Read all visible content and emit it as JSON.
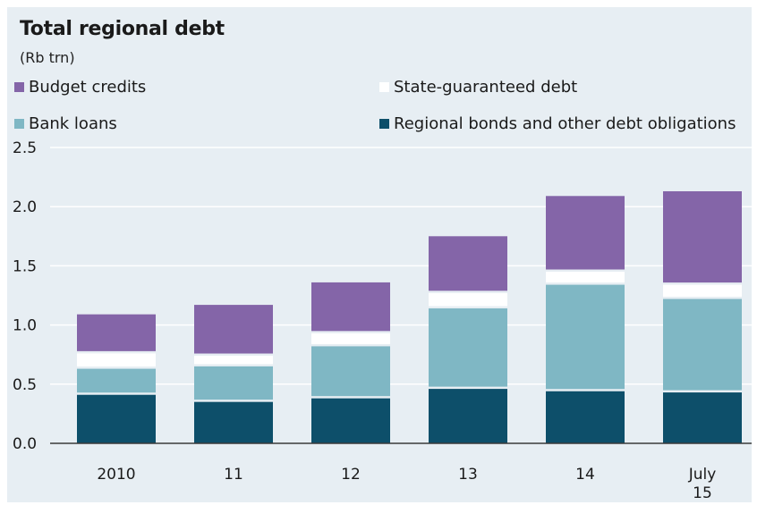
{
  "chart_data": {
    "type": "bar",
    "stacked": true,
    "title": "Total regional debt",
    "subtitle": "(Rb trn)",
    "categories": [
      "2010",
      "11",
      "12",
      "13",
      "14",
      "July\n15"
    ],
    "series": [
      {
        "name": "Regional bonds and other debt obligations",
        "color": "#0d4f6a",
        "values": [
          0.41,
          0.35,
          0.38,
          0.46,
          0.44,
          0.43
        ]
      },
      {
        "name": "Bank loans",
        "color": "#7fb7c4",
        "values": [
          0.22,
          0.3,
          0.44,
          0.68,
          0.9,
          0.79
        ]
      },
      {
        "name": "State-guaranteed debt",
        "color": "#ffffff",
        "values": [
          0.13,
          0.09,
          0.11,
          0.13,
          0.11,
          0.12
        ]
      },
      {
        "name": "Budget credits",
        "color": "#8465a8",
        "values": [
          0.33,
          0.43,
          0.43,
          0.48,
          0.64,
          0.79
        ]
      }
    ],
    "ylim": [
      0,
      2.5
    ],
    "yticks": [
      "0.0",
      "0.5",
      "1.0",
      "1.5",
      "2.0",
      "2.5"
    ],
    "grid": true,
    "legend_placement": "top"
  }
}
